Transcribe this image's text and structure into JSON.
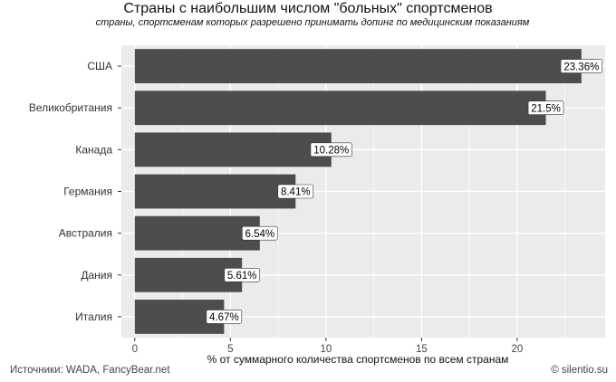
{
  "chart_data": {
    "type": "bar",
    "orientation": "horizontal",
    "title": "Страны с наибольшим числом \"больных\" спортсменов",
    "subtitle": "страны, спортсменам которых разрешено принимать допинг по медицинским показаниям",
    "xlabel": "% от суммарного количества спортсменов по всем странам",
    "ylabel": "",
    "categories": [
      "США",
      "Великобритания",
      "Канада",
      "Германия",
      "Австралия",
      "Дания",
      "Италия"
    ],
    "values": [
      23.36,
      21.5,
      10.28,
      8.41,
      6.54,
      5.61,
      4.67
    ],
    "data_labels": [
      "23.36%",
      "21.5%",
      "10.28%",
      "8.41%",
      "6.54%",
      "5.61%",
      "4.67%"
    ],
    "xlim": [
      -0.7,
      24.6
    ],
    "xticks": [
      0,
      5,
      10,
      15,
      20
    ],
    "xtick_labels": [
      "0",
      "5",
      "10",
      "15",
      "20"
    ],
    "grid": true,
    "legend": "none",
    "colors": {
      "bar": "#4d4d4d",
      "panel": "#ebebeb",
      "gridline": "#ffffff",
      "label_bg": "#ffffff"
    }
  },
  "footer": {
    "source": "Источники: WADA, FancyBear.net",
    "credit": "© silentio.su"
  }
}
